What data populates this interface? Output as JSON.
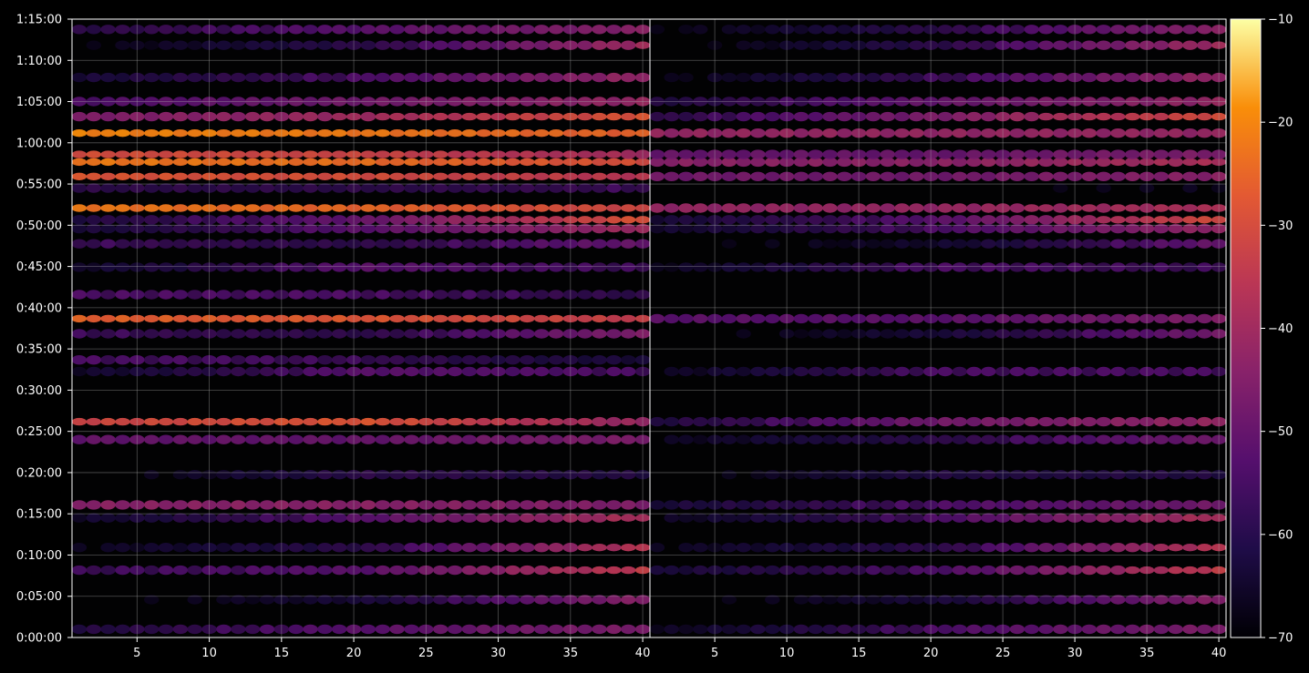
{
  "chart_data": {
    "type": "heatmap",
    "title": "",
    "xlabel": "",
    "ylabel": "",
    "grid": true,
    "background": "#000000",
    "colormap": "inferno",
    "panels": [
      {
        "name": "left",
        "xlim": [
          1,
          40
        ],
        "x_ticks": [
          5,
          10,
          15,
          20,
          25,
          30,
          35,
          40
        ]
      },
      {
        "name": "right",
        "xlim": [
          1,
          40
        ],
        "x_ticks": [
          5,
          10,
          15,
          20,
          25,
          30,
          35,
          40
        ]
      }
    ],
    "y_range_seconds": [
      0,
      4500
    ],
    "y_ticks": [
      "0:00:00",
      "0:05:00",
      "0:10:00",
      "0:15:00",
      "0:20:00",
      "0:25:00",
      "0:30:00",
      "0:35:00",
      "0:40:00",
      "0:45:00",
      "0:50:00",
      "0:55:00",
      "1:00:00",
      "1:05:00",
      "1:10:00",
      "1:15:00"
    ],
    "colorbar": {
      "min": -70,
      "max": -10,
      "ticks": [
        "−70",
        "−60",
        "−50",
        "−40",
        "−30",
        "−20",
        "−10"
      ]
    },
    "bands": [
      {
        "t": "1:01:10",
        "left": [
          -20,
          -22,
          -26
        ],
        "right": [
          -42,
          -42,
          -42
        ]
      },
      {
        "t": "0:57:40",
        "left": [
          -22,
          -24,
          -30
        ],
        "right": [
          -44,
          -44,
          -38
        ]
      },
      {
        "t": "0:58:35",
        "left": [
          -30,
          -32,
          -40
        ],
        "right": [
          -50,
          -50,
          -46
        ]
      },
      {
        "t": "0:55:55",
        "left": [
          -28,
          -30,
          -36
        ],
        "right": [
          -48,
          -48,
          -44
        ]
      },
      {
        "t": "0:52:05",
        "left": [
          -22,
          -25,
          -32
        ],
        "right": [
          -42,
          -42,
          -38
        ]
      },
      {
        "t": "0:50:40",
        "left": [
          -60,
          -50,
          -28
        ],
        "right": [
          -62,
          -52,
          -30
        ]
      },
      {
        "t": "0:49:35",
        "left": [
          -62,
          -52,
          -40
        ],
        "right": [
          -64,
          -54,
          -42
        ]
      },
      {
        "t": "0:38:40",
        "left": [
          -26,
          -28,
          -34
        ],
        "right": [
          -52,
          -52,
          -46
        ]
      },
      {
        "t": "0:26:10",
        "left": [
          -32,
          -28,
          -42
        ],
        "right": [
          -60,
          -48,
          -42
        ]
      },
      {
        "t": "0:24:00",
        "left": [
          -50,
          -50,
          -46
        ],
        "right": [
          -66,
          -58,
          -48
        ]
      },
      {
        "t": "1:03:10",
        "left": [
          -46,
          -40,
          -28
        ],
        "right": [
          -58,
          -46,
          -30
        ]
      },
      {
        "t": "1:05:00",
        "left": [
          -54,
          -48,
          -42
        ],
        "right": [
          -60,
          -50,
          -42
        ]
      },
      {
        "t": "0:16:05",
        "left": [
          -44,
          -44,
          -46
        ],
        "right": [
          -62,
          -54,
          -48
        ]
      },
      {
        "t": "0:14:30",
        "left": [
          -64,
          -52,
          -38
        ],
        "right": [
          -66,
          -54,
          -38
        ]
      },
      {
        "t": "0:08:10",
        "left": [
          -56,
          -52,
          -34
        ],
        "right": [
          -62,
          -54,
          -34
        ]
      },
      {
        "t": "0:10:55",
        "left": [
          -66,
          -58,
          -36
        ],
        "right": [
          -66,
          -58,
          -36
        ]
      },
      {
        "t": "0:04:35",
        "left": [
          -70,
          -62,
          -44
        ],
        "right": [
          -70,
          -62,
          -44
        ]
      },
      {
        "t": "0:01:00",
        "left": [
          -60,
          -52,
          -46
        ],
        "right": [
          -66,
          -54,
          -46
        ]
      },
      {
        "t": "0:41:35",
        "left": [
          -54,
          -54,
          -58
        ],
        "right": [
          -70,
          -70,
          -70
        ]
      },
      {
        "t": "0:44:55",
        "left": [
          -64,
          -52,
          -56
        ],
        "right": [
          -66,
          -54,
          -56
        ]
      },
      {
        "t": "0:32:15",
        "left": [
          -64,
          -52,
          -54
        ],
        "right": [
          -66,
          -54,
          -54
        ]
      },
      {
        "t": "0:33:40",
        "left": [
          -54,
          -56,
          -62
        ],
        "right": [
          -70,
          -70,
          -70
        ]
      },
      {
        "t": "0:36:50",
        "left": [
          -56,
          -58,
          -46
        ],
        "right": [
          -70,
          -62,
          -48
        ]
      },
      {
        "t": "0:47:45",
        "left": [
          -56,
          -58,
          -50
        ],
        "right": [
          -70,
          -64,
          -50
        ]
      },
      {
        "t": "1:07:55",
        "left": [
          -62,
          -54,
          -42
        ],
        "right": [
          -68,
          -56,
          -42
        ]
      },
      {
        "t": "1:11:50",
        "left": [
          -68,
          -58,
          -40
        ],
        "right": [
          -70,
          -58,
          -40
        ]
      },
      {
        "t": "1:13:45",
        "left": [
          -58,
          -52,
          -44
        ],
        "right": [
          -68,
          -58,
          -44
        ]
      },
      {
        "t": "0:19:45",
        "left": [
          -70,
          -58,
          -60
        ],
        "right": [
          -70,
          -60,
          -60
        ]
      },
      {
        "t": "0:54:30",
        "left": [
          -58,
          -58,
          -56
        ],
        "right": [
          -70,
          -70,
          -66
        ]
      }
    ]
  }
}
